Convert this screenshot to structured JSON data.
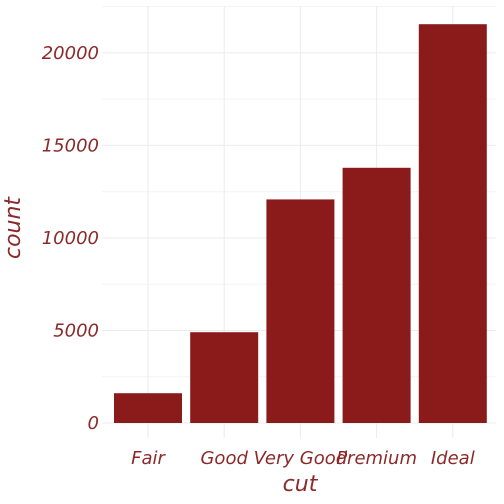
{
  "chart_data": {
    "type": "bar",
    "title": "",
    "xlabel": "cut",
    "ylabel": "count",
    "categories": [
      "Fair",
      "Good",
      "Very Good",
      "Premium",
      "Ideal"
    ],
    "values": [
      1610,
      4906,
      12082,
      13791,
      21551
    ],
    "ylim": [
      0,
      22600
    ],
    "yticks": [
      0,
      5000,
      10000,
      15000,
      20000
    ],
    "grid": true,
    "legend": "none",
    "bar_color": "#8b1a1a",
    "text_color": "#8b2a2a"
  }
}
